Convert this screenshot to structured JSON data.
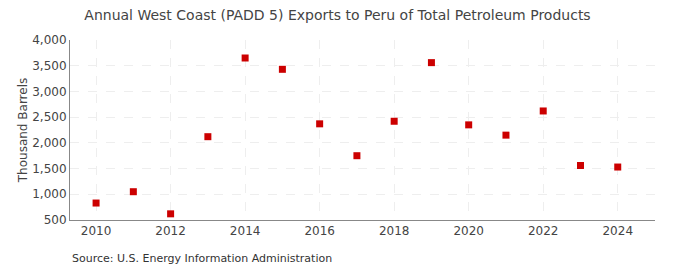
{
  "chart_data": {
    "type": "scatter",
    "title": "Annual West Coast (PADD 5) Exports to Peru of Total Petroleum Products",
    "ylabel": "Thousand Barrels",
    "annotations": [
      "Source: U.S. Energy Information Administration"
    ],
    "x": [
      2010,
      2011,
      2012,
      2013,
      2014,
      2015,
      2016,
      2017,
      2018,
      2019,
      2020,
      2021,
      2022,
      2023,
      2024
    ],
    "values": [
      830,
      1050,
      620,
      2120,
      3650,
      3430,
      2370,
      1750,
      2420,
      3560,
      2350,
      2150,
      2620,
      1560,
      1530
    ],
    "color": "#cc0000",
    "marker": "square",
    "xlim": [
      2009.3,
      2025.0
    ],
    "xticks": [
      2010,
      2012,
      2014,
      2016,
      2018,
      2020,
      2022,
      2024
    ],
    "ylim": [
      500,
      4000
    ],
    "yticks": [
      500,
      {
        "value": 1000,
        "label": "1,000"
      },
      {
        "value": 1500,
        "label": "1,500"
      },
      {
        "value": 2000,
        "label": "2,000"
      },
      {
        "value": 2500,
        "label": "2,500"
      },
      {
        "value": 3000,
        "label": "3,000"
      },
      {
        "value": 3500,
        "label": "3,500"
      },
      {
        "value": 4000,
        "label": "4,000"
      }
    ],
    "grid": true
  }
}
